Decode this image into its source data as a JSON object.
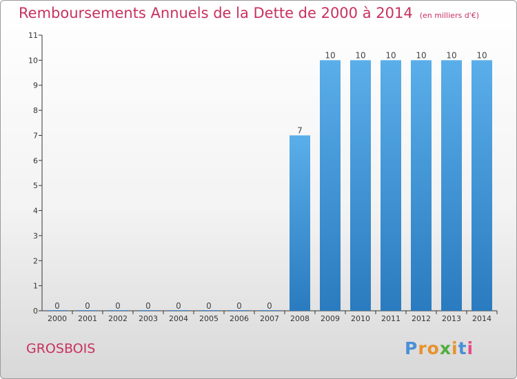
{
  "header": {
    "title": "Remboursements Annuels de la Dette de 2000 à 2014",
    "unit": "(en milliers d'€)"
  },
  "footer": {
    "town": "GROSBOIS",
    "logo": "Proxiti"
  },
  "colors": {
    "title": "#c8315f",
    "bar_top": "#5aaee9",
    "bar_bottom": "#2a7bbf",
    "logo_letters": [
      "#4a8fd6",
      "#e8922b",
      "#e8922b",
      "#4fae3b",
      "#e8922b",
      "#4a8fd6",
      "#e64b8a"
    ]
  },
  "chart_data": {
    "type": "bar",
    "categories": [
      "2000",
      "2001",
      "2002",
      "2003",
      "2004",
      "2005",
      "2006",
      "2007",
      "2008",
      "2009",
      "2010",
      "2011",
      "2012",
      "2013",
      "2014"
    ],
    "values": [
      0,
      0,
      0,
      0,
      0,
      0,
      0,
      0,
      7,
      10,
      10,
      10,
      10,
      10,
      10
    ],
    "data_labels": [
      "0",
      "0",
      "0",
      "0",
      "0",
      "0",
      "0",
      "0",
      "7",
      "10",
      "10",
      "10",
      "10",
      "10",
      "10"
    ],
    "yticks": [
      "0",
      "1",
      "2",
      "3",
      "4",
      "5",
      "6",
      "7",
      "8",
      "9",
      "10",
      "11"
    ],
    "ylim": [
      0,
      11
    ],
    "grid": false,
    "legend": "none",
    "title": "Remboursements Annuels de la Dette de 2000 à 2014",
    "xlabel": "",
    "ylabel": ""
  }
}
